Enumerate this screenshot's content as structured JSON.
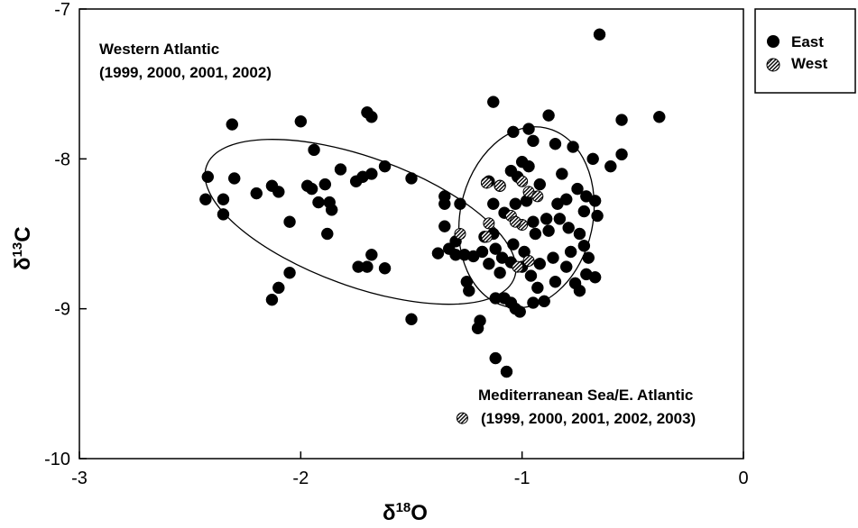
{
  "chart_data": {
    "type": "scatter",
    "xlabel_main": "δ",
    "xlabel_sup": "18",
    "xlabel_tail": "O",
    "ylabel_main": "δ",
    "ylabel_sup": "13",
    "ylabel_tail": "C",
    "xlim": [
      -3,
      0
    ],
    "ylim": [
      -10,
      -7
    ],
    "xticks": [
      -3,
      -2,
      -1,
      0
    ],
    "yticks": [
      -10,
      -9,
      -8,
      -7
    ],
    "xtick_labels": [
      "-3",
      "-2",
      "-1",
      "0"
    ],
    "ytick_labels": [
      "-10",
      "-9",
      "-8",
      "-7"
    ],
    "grid": false,
    "legend_position": "top-right outside plot",
    "annotations": {
      "west_line1": "Western Atlantic",
      "west_line2": "(1999, 2000, 2001, 2002)",
      "east_line1": "Mediterranean Sea/E. Atlantic",
      "east_line2": "(1999, 2000, 2001, 2002, 2003)"
    },
    "ellipses": [
      {
        "name": "Western Atlantic",
        "center": [
          -1.73,
          -8.42
        ],
        "semi_axes": [
          0.74,
          0.43
        ],
        "rotation_deg": 20
      },
      {
        "name": "Mediterranean Sea/E. Atlantic",
        "center": [
          -0.98,
          -8.39
        ],
        "semi_axes": [
          0.3,
          0.61
        ],
        "rotation_deg": 12
      }
    ],
    "series": [
      {
        "name": "East",
        "marker": "solid",
        "color": "#000000",
        "points": [
          [
            -0.65,
            -7.17
          ],
          [
            -0.38,
            -7.72
          ],
          [
            -0.55,
            -7.74
          ],
          [
            -0.88,
            -7.71
          ],
          [
            -0.68,
            -8.0
          ],
          [
            -0.6,
            -8.05
          ],
          [
            -0.55,
            -7.97
          ],
          [
            -0.97,
            -7.8
          ],
          [
            -1.04,
            -7.82
          ],
          [
            -1.13,
            -7.62
          ],
          [
            -0.95,
            -7.88
          ],
          [
            -1.0,
            -8.02
          ],
          [
            -1.05,
            -8.08
          ],
          [
            -1.1,
            -8.18
          ],
          [
            -1.15,
            -8.15
          ],
          [
            -1.02,
            -8.12
          ],
          [
            -0.97,
            -8.05
          ],
          [
            -0.92,
            -8.17
          ],
          [
            -0.85,
            -7.9
          ],
          [
            -0.82,
            -8.1
          ],
          [
            -0.77,
            -7.92
          ],
          [
            -0.71,
            -8.25
          ],
          [
            -0.67,
            -8.28
          ],
          [
            -0.72,
            -8.35
          ],
          [
            -0.75,
            -8.2
          ],
          [
            -0.8,
            -8.27
          ],
          [
            -0.84,
            -8.3
          ],
          [
            -0.89,
            -8.4
          ],
          [
            -0.95,
            -8.42
          ],
          [
            -0.98,
            -8.28
          ],
          [
            -1.03,
            -8.3
          ],
          [
            -1.08,
            -8.36
          ],
          [
            -1.13,
            -8.3
          ],
          [
            -1.17,
            -8.52
          ],
          [
            -1.12,
            -8.6
          ],
          [
            -1.09,
            -8.66
          ],
          [
            -1.04,
            -8.57
          ],
          [
            -0.99,
            -8.62
          ],
          [
            -0.94,
            -8.5
          ],
          [
            -0.88,
            -8.48
          ],
          [
            -0.83,
            -8.4
          ],
          [
            -0.79,
            -8.46
          ],
          [
            -0.74,
            -8.5
          ],
          [
            -0.72,
            -8.58
          ],
          [
            -0.66,
            -8.38
          ],
          [
            -0.7,
            -8.66
          ],
          [
            -0.78,
            -8.62
          ],
          [
            -0.86,
            -8.66
          ],
          [
            -0.92,
            -8.7
          ],
          [
            -1.0,
            -8.72
          ],
          [
            -1.05,
            -8.69
          ],
          [
            -1.1,
            -8.76
          ],
          [
            -1.15,
            -8.7
          ],
          [
            -1.18,
            -8.62
          ],
          [
            -1.22,
            -8.65
          ],
          [
            -1.26,
            -8.64
          ],
          [
            -1.3,
            -8.64
          ],
          [
            -1.33,
            -8.6
          ],
          [
            -1.35,
            -8.45
          ],
          [
            -1.38,
            -8.63
          ],
          [
            -1.35,
            -8.25
          ],
          [
            -1.35,
            -8.3
          ],
          [
            -1.3,
            -8.55
          ],
          [
            -1.28,
            -8.3
          ],
          [
            -1.25,
            -8.82
          ],
          [
            -1.24,
            -8.88
          ],
          [
            -1.2,
            -9.13
          ],
          [
            -1.19,
            -9.08
          ],
          [
            -1.12,
            -8.93
          ],
          [
            -1.08,
            -8.93
          ],
          [
            -1.05,
            -8.96
          ],
          [
            -1.03,
            -9.0
          ],
          [
            -1.01,
            -9.02
          ],
          [
            -0.95,
            -8.96
          ],
          [
            -0.9,
            -8.95
          ],
          [
            -0.85,
            -8.82
          ],
          [
            -0.8,
            -8.72
          ],
          [
            -0.76,
            -8.83
          ],
          [
            -0.74,
            -8.88
          ],
          [
            -0.71,
            -8.77
          ],
          [
            -0.67,
            -8.79
          ],
          [
            -0.93,
            -8.86
          ],
          [
            -0.96,
            -8.78
          ],
          [
            -1.13,
            -8.5
          ],
          [
            -1.12,
            -9.33
          ],
          [
            -1.07,
            -9.42
          ],
          [
            -1.5,
            -9.07
          ],
          [
            -2.43,
            -8.27
          ],
          [
            -2.42,
            -8.12
          ],
          [
            -2.35,
            -8.37
          ],
          [
            -2.35,
            -8.27
          ],
          [
            -2.31,
            -7.77
          ],
          [
            -2.3,
            -8.13
          ],
          [
            -2.2,
            -8.23
          ],
          [
            -2.13,
            -8.18
          ],
          [
            -2.1,
            -8.22
          ],
          [
            -2.05,
            -8.42
          ],
          [
            -2.0,
            -7.75
          ],
          [
            -1.97,
            -8.18
          ],
          [
            -1.95,
            -8.2
          ],
          [
            -1.94,
            -7.94
          ],
          [
            -1.92,
            -8.29
          ],
          [
            -1.89,
            -8.17
          ],
          [
            -1.87,
            -8.29
          ],
          [
            -1.86,
            -8.34
          ],
          [
            -1.88,
            -8.5
          ],
          [
            -1.82,
            -8.07
          ],
          [
            -1.75,
            -8.15
          ],
          [
            -1.72,
            -8.12
          ],
          [
            -1.68,
            -8.1
          ],
          [
            -1.7,
            -7.69
          ],
          [
            -1.68,
            -7.72
          ],
          [
            -1.62,
            -8.05
          ],
          [
            -1.5,
            -8.13
          ],
          [
            -1.74,
            -8.72
          ],
          [
            -1.7,
            -8.72
          ],
          [
            -1.68,
            -8.64
          ],
          [
            -1.62,
            -8.73
          ],
          [
            -2.05,
            -8.76
          ],
          [
            -2.1,
            -8.86
          ],
          [
            -2.13,
            -8.94
          ]
        ]
      },
      {
        "name": "West",
        "marker": "hatched",
        "color": "#000000",
        "points": [
          [
            -1.05,
            -8.38
          ],
          [
            -1.0,
            -8.44
          ],
          [
            -1.02,
            -8.72
          ],
          [
            -0.97,
            -8.68
          ],
          [
            -1.16,
            -8.16
          ],
          [
            -1.1,
            -8.18
          ],
          [
            -1.15,
            -8.43
          ],
          [
            -1.16,
            -8.52
          ],
          [
            -0.97,
            -8.22
          ],
          [
            -1.0,
            -8.15
          ],
          [
            -0.93,
            -8.25
          ],
          [
            -1.28,
            -8.5
          ],
          [
            -1.27,
            -9.73
          ],
          [
            -1.03,
            -8.42
          ]
        ]
      }
    ]
  },
  "legend": {
    "entries": [
      {
        "label": "East",
        "marker": "solid"
      },
      {
        "label": "West",
        "marker": "hatched"
      }
    ]
  }
}
